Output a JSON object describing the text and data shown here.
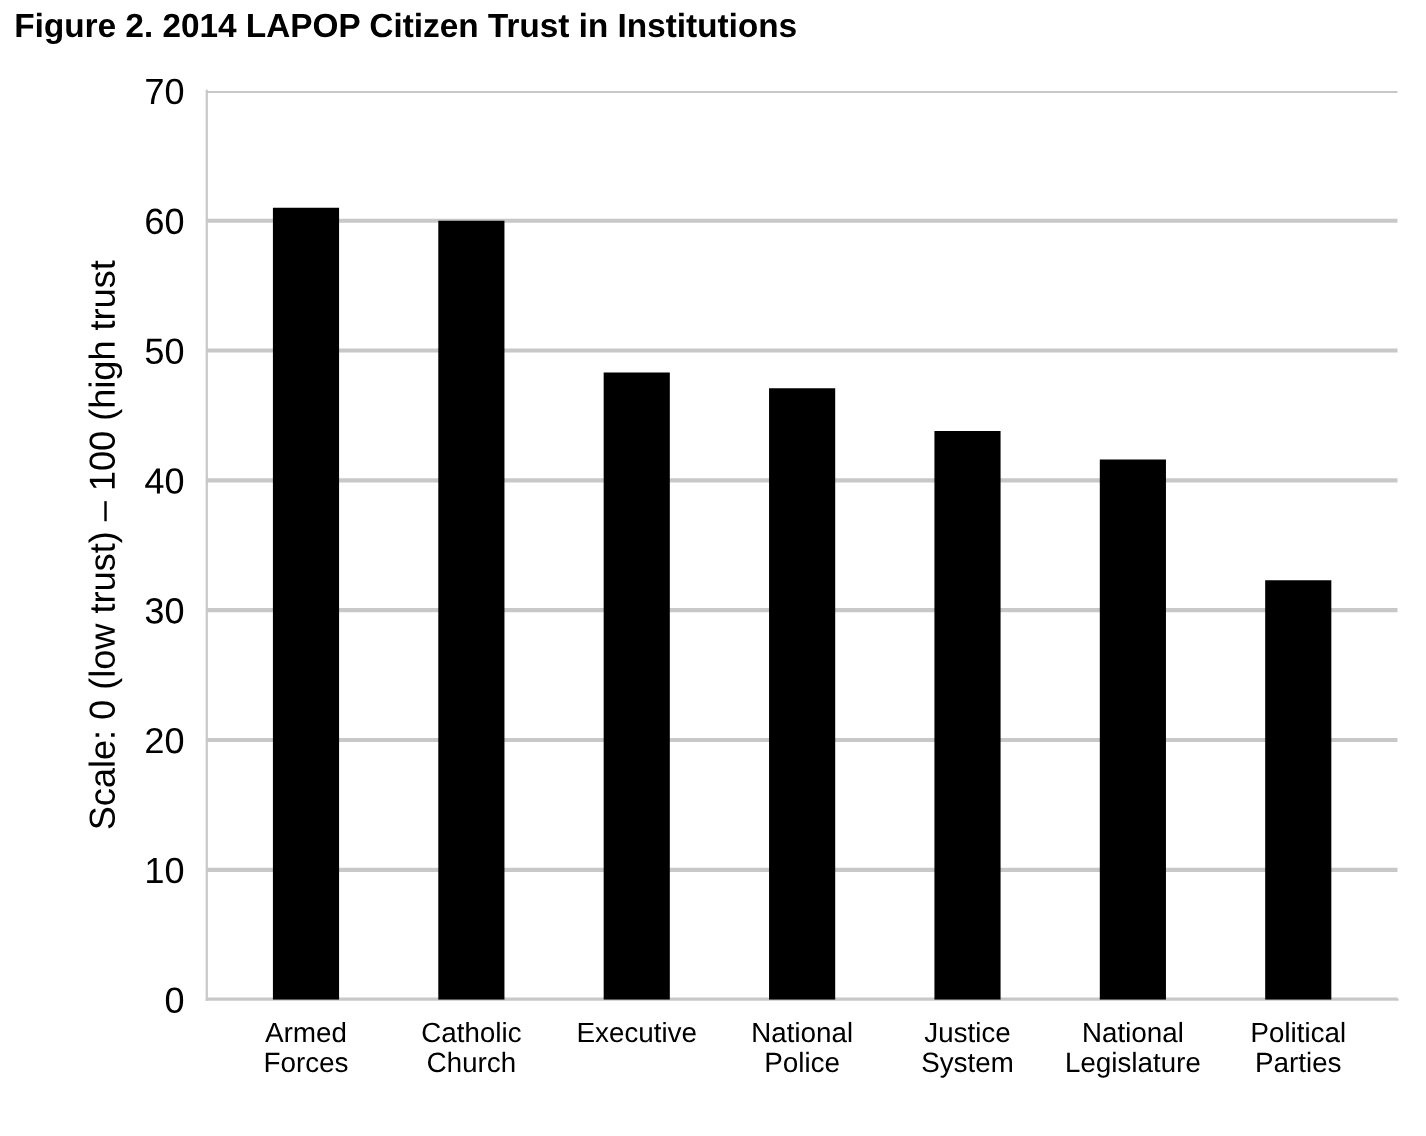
{
  "chart_data": {
    "type": "bar",
    "title": "Figure 2. 2014 LAPOP Citizen Trust in Institutions",
    "ylabel": "Scale: 0 (low trust) – 100 (high trust",
    "categories": [
      "Armed\nForces",
      "Catholic\nChurch",
      "Executive",
      "National\nPolice",
      "Justice\nSystem",
      "National\nLegislature",
      "Political\nParties"
    ],
    "values": [
      61.0,
      60.0,
      48.3,
      47.1,
      43.8,
      41.6,
      32.3
    ],
    "color": "#000000",
    "ylim": [
      0,
      70
    ],
    "yticks": [
      0,
      10,
      20,
      30,
      40,
      50,
      60,
      70
    ],
    "grid": "y"
  }
}
